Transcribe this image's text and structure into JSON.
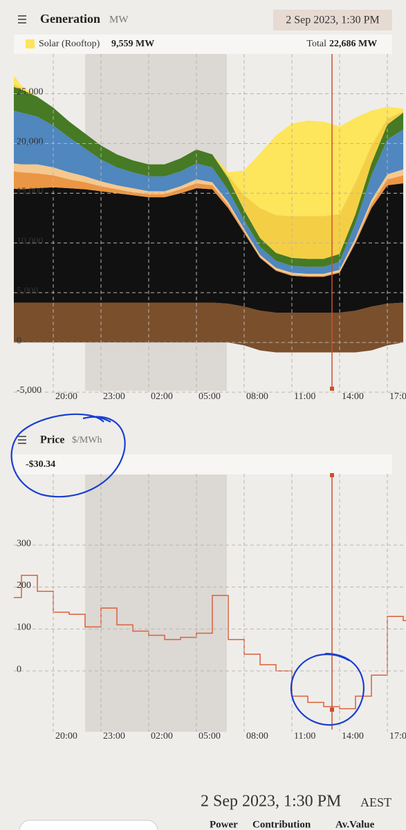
{
  "header": {
    "title": "Generation",
    "unit": "MW",
    "date": "2 Sep 2023, 1:30 PM",
    "readout_name": "Solar (Rooftop)",
    "readout_value": "9,559 MW",
    "total_label": "Total",
    "total_value": "22,686 MW"
  },
  "price_header": {
    "title": "Price",
    "unit": "$/MWh",
    "readout": "-$30.34"
  },
  "chart_data": [
    {
      "type": "area",
      "x": [
        "17:00",
        "18:00",
        "19:00",
        "20:00",
        "21:00",
        "22:00",
        "23:00",
        "00:00",
        "01:00",
        "02:00",
        "03:00",
        "04:00",
        "05:00",
        "06:00",
        "07:00",
        "08:00",
        "09:00",
        "10:00",
        "11:00",
        "12:00",
        "13:00",
        "14:00",
        "15:00",
        "16:00",
        "17:00",
        "18:00"
      ],
      "xticks": [
        "20:00",
        "23:00",
        "02:00",
        "05:00",
        "08:00",
        "11:00",
        "14:00",
        "17:00"
      ],
      "ylim": [
        -5000,
        29000
      ],
      "yticks": [
        {
          "value": -5000,
          "label": "-5,000"
        },
        0,
        {
          "value": 5000,
          "label": "5,000"
        },
        {
          "value": 10000,
          "label": "10,000"
        },
        {
          "value": 15000,
          "label": "15,000"
        },
        {
          "value": 20000,
          "label": "20,000"
        },
        {
          "value": 25000,
          "label": "25,000"
        }
      ],
      "grid": true,
      "series": [
        {
          "color": "#7a4f2c",
          "values": [
            0,
            0,
            0,
            0,
            0,
            0,
            0,
            0,
            0,
            0,
            0,
            0,
            0,
            0,
            0,
            -300,
            -800,
            -1000,
            -1000,
            -1000,
            -1000,
            -1000,
            -1000,
            -800,
            -300,
            0
          ]
        },
        {
          "color": "#7a4f2c",
          "values": [
            4000,
            4000,
            4000,
            4000,
            4000,
            4000,
            4000,
            4000,
            4000,
            4000,
            4000,
            4000,
            4000,
            4000,
            3900,
            3600,
            3200,
            3000,
            3000,
            3000,
            3000,
            3000,
            3200,
            3600,
            3900,
            4000
          ]
        },
        {
          "color": "#111111",
          "values": [
            11500,
            11400,
            11500,
            11600,
            11500,
            11400,
            11200,
            11000,
            10800,
            10600,
            10600,
            11000,
            11500,
            11400,
            9600,
            7400,
            5300,
            4200,
            3700,
            3600,
            3600,
            4000,
            6800,
            9900,
            11900,
            12000
          ]
        },
        {
          "color": "#eb9644",
          "values": [
            1800,
            1700,
            1500,
            1200,
            900,
            700,
            500,
            400,
            300,
            300,
            300,
            400,
            500,
            400,
            300,
            200,
            100,
            100,
            100,
            100,
            100,
            100,
            200,
            400,
            600,
            800
          ]
        },
        {
          "color": "#f5c890",
          "values": [
            800,
            800,
            900,
            800,
            700,
            600,
            500,
            400,
            400,
            300,
            300,
            300,
            400,
            300,
            300,
            200,
            200,
            200,
            200,
            200,
            200,
            200,
            300,
            400,
            500,
            600
          ]
        },
        {
          "color": "#4f87be",
          "values": [
            5400,
            5200,
            4800,
            4200,
            3500,
            2800,
            2200,
            1800,
            1600,
            1500,
            1500,
            1500,
            1600,
            1500,
            1200,
            900,
            800,
            700,
            700,
            700,
            700,
            800,
            1500,
            2500,
            3500,
            4000
          ]
        },
        {
          "color": "#467a24",
          "values": [
            2500,
            2300,
            2000,
            1800,
            1600,
            1500,
            1400,
            1300,
            1200,
            1200,
            1200,
            1300,
            1400,
            1300,
            1200,
            1000,
            900,
            800,
            800,
            800,
            800,
            800,
            900,
            1200,
            1500,
            1700
          ]
        },
        {
          "color": "#f4cf45",
          "values": [
            500,
            100,
            0,
            0,
            0,
            0,
            0,
            0,
            0,
            0,
            0,
            0,
            0,
            0,
            300,
            1500,
            3000,
            3800,
            4200,
            4300,
            4300,
            4000,
            3200,
            1800,
            600,
            100
          ]
        },
        {
          "name": "Solar (Rooftop)",
          "color": "#fde55c",
          "values": [
            1500,
            300,
            0,
            0,
            0,
            0,
            0,
            0,
            0,
            0,
            0,
            0,
            0,
            0,
            300,
            2500,
            5500,
            8000,
            9300,
            9600,
            9500,
            8800,
            6500,
            3500,
            1200,
            300
          ]
        }
      ]
    },
    {
      "type": "line",
      "step": true,
      "color": "#d9603b",
      "x": [
        "17:00",
        "18:00",
        "19:00",
        "20:00",
        "21:00",
        "22:00",
        "23:00",
        "00:00",
        "01:00",
        "02:00",
        "03:00",
        "04:00",
        "05:00",
        "06:00",
        "07:00",
        "08:00",
        "09:00",
        "10:00",
        "11:00",
        "12:00",
        "13:00",
        "14:00",
        "15:00",
        "16:00",
        "17:00",
        "18:00"
      ],
      "xticks": [
        "20:00",
        "23:00",
        "02:00",
        "05:00",
        "08:00",
        "11:00",
        "14:00",
        "17:00"
      ],
      "ylim": [
        -145,
        470
      ],
      "yticks": [
        0,
        100,
        200,
        300
      ],
      "grid": true,
      "values": [
        175,
        228,
        190,
        140,
        135,
        105,
        150,
        110,
        95,
        85,
        75,
        80,
        90,
        180,
        75,
        40,
        15,
        0,
        -60,
        -75,
        -85,
        -90,
        -60,
        -10,
        130,
        120
      ]
    }
  ],
  "footer": {
    "date": "2 Sep 2023, 1:30 PM",
    "zone": "AEST",
    "columns": [
      "Power",
      "Contribution",
      "Av.Value"
    ]
  }
}
